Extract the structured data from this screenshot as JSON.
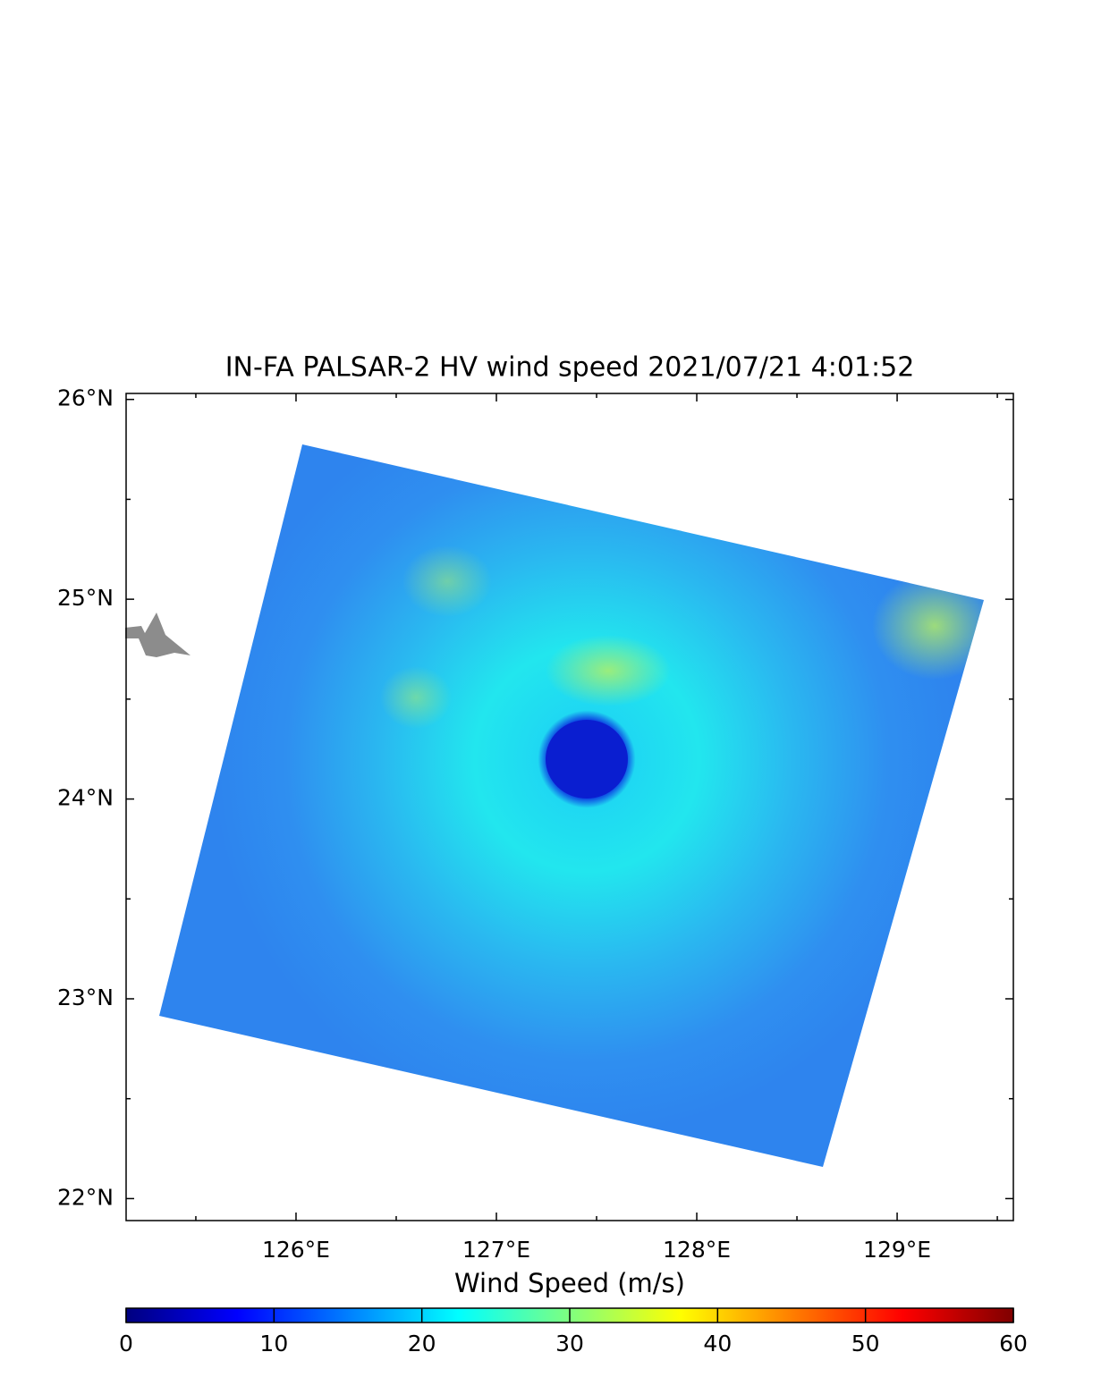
{
  "map": {
    "title": "IN-FA  PALSAR-2 HV  wind speed 2021/07/21 4:01:52",
    "xlim": [
      125.152,
      129.58
    ],
    "ylim": [
      21.89,
      26.03
    ],
    "xticks": [
      {
        "value": 126,
        "label": "126°E"
      },
      {
        "value": 127,
        "label": "127°E"
      },
      {
        "value": 128,
        "label": "128°E"
      },
      {
        "value": 129,
        "label": "129°E"
      }
    ],
    "yticks": [
      {
        "value": 22,
        "label": "22°N"
      },
      {
        "value": 23,
        "label": "23°N"
      },
      {
        "value": 24,
        "label": "24°N"
      },
      {
        "value": 25,
        "label": "25°N"
      },
      {
        "value": 26,
        "label": "26°N"
      }
    ],
    "xminorticks": [
      125.5,
      126.5,
      127.5,
      128.5,
      129.5
    ],
    "yminorticks": [
      22.5,
      23.5,
      24.5,
      25.5
    ],
    "colorbar": {
      "label": "Wind Speed (m/s)",
      "lim": [
        0,
        60
      ],
      "ticks": [
        0,
        10,
        20,
        30,
        40,
        50,
        60
      ],
      "colormap": [
        "#00007f",
        "#0000ff",
        "#007fff",
        "#00ffff",
        "#7fff7f",
        "#ffff00",
        "#ff7f00",
        "#ff0000",
        "#7f0000"
      ]
    }
  }
}
